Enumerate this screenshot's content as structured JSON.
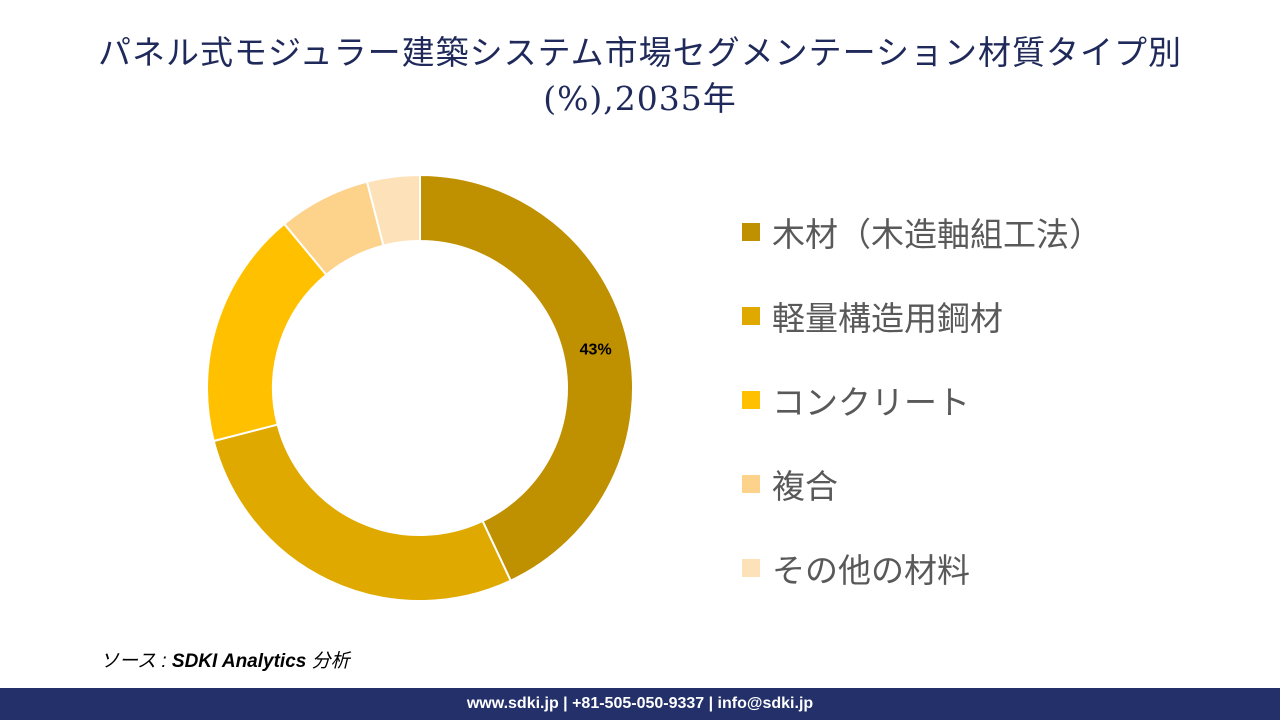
{
  "title": {
    "line1": "パネル式モジュラー建築システム市場セグメンテーション材質タイプ別",
    "line2": "(%),2035年"
  },
  "chart_data": {
    "type": "donut",
    "title": "パネル式モジュラー建築システム市場セグメンテーション材質タイプ別 (%),2035年",
    "series": [
      {
        "name": "木材（木造軸組工法）",
        "value": 43,
        "color": "#bf9000",
        "label": "43%"
      },
      {
        "name": "軽量構造用鋼材",
        "value": 28,
        "color": "#dfa900",
        "label": ""
      },
      {
        "name": "コンクリート",
        "value": 18,
        "color": "#ffc000",
        "label": ""
      },
      {
        "name": "複合",
        "value": 7,
        "color": "#fdd28b",
        "label": ""
      },
      {
        "name": "その他の材料",
        "value": 4,
        "color": "#fde2b9",
        "label": ""
      }
    ],
    "legend_position": "right"
  },
  "source": {
    "prefix": "ソース : ",
    "brand": "SDKI Analytics",
    "suffix": " 分析"
  },
  "footer": {
    "text": "www.sdki.jp | +81-505-050-9337 | info@sdki.jp"
  },
  "colors": {
    "title": "#1f2a5a",
    "footer_bg": "#23306a",
    "legend_text": "#595959"
  }
}
